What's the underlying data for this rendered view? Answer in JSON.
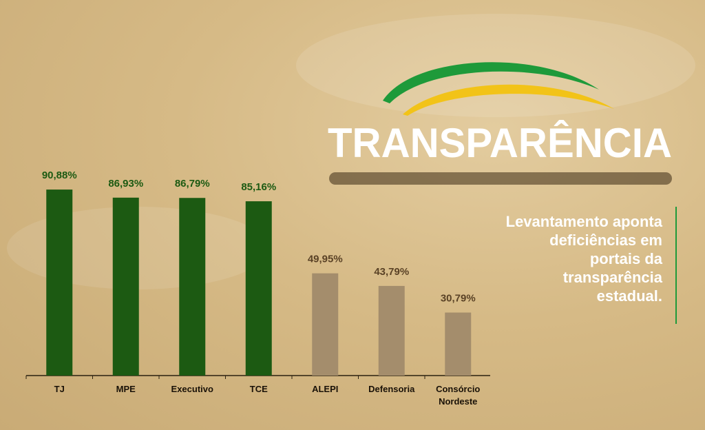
{
  "chart_data": {
    "type": "bar",
    "title": "TRANSPARÊNCIA",
    "subtitle": "Levantamento aponta deficiências em portais da transparência estadual.",
    "categories": [
      "TJ",
      "MPE",
      "Executivo",
      "TCE",
      "ALEPI",
      "Defensoria",
      "Consórcio Nordeste"
    ],
    "values": [
      90.88,
      86.93,
      86.79,
      85.16,
      49.95,
      43.79,
      30.79
    ],
    "value_labels": [
      "90,88%",
      "86,93%",
      "86,79%",
      "85,16%",
      "49,95%",
      "43,79%",
      "30,79%"
    ],
    "colors": [
      "#1c5a12",
      "#1c5a12",
      "#1c5a12",
      "#1c5a12",
      "#a48d6c",
      "#a48d6c",
      "#a48d6c"
    ],
    "label_colors": [
      "#1c5a12",
      "#1c5a12",
      "#1c5a12",
      "#1c5a12",
      "#5a4226",
      "#5a4226",
      "#5a4226"
    ]
  }
}
